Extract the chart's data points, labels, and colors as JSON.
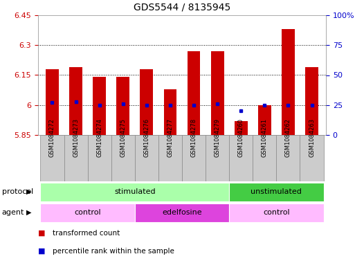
{
  "title": "GDS5544 / 8135945",
  "samples": [
    "GSM1084272",
    "GSM1084273",
    "GSM1084274",
    "GSM1084275",
    "GSM1084276",
    "GSM1084277",
    "GSM1084278",
    "GSM1084279",
    "GSM1084260",
    "GSM1084261",
    "GSM1084262",
    "GSM1084263"
  ],
  "bar_values": [
    6.18,
    6.19,
    6.14,
    6.14,
    6.18,
    6.08,
    6.27,
    6.27,
    5.92,
    6.0,
    6.38,
    6.19
  ],
  "bar_base": 5.85,
  "percentile_values": [
    27,
    28,
    25,
    26,
    25,
    25,
    25,
    26,
    20,
    25,
    25,
    25
  ],
  "ylim_left": [
    5.85,
    6.45
  ],
  "ylim_right": [
    0,
    100
  ],
  "yticks_left": [
    5.85,
    6.0,
    6.15,
    6.3,
    6.45
  ],
  "yticks_right": [
    0,
    25,
    50,
    75,
    100
  ],
  "ytick_labels_left": [
    "5.85",
    "6",
    "6.15",
    "6.3",
    "6.45"
  ],
  "ytick_labels_right": [
    "0",
    "25",
    "50",
    "75",
    "100%"
  ],
  "grid_values": [
    6.0,
    6.15,
    6.3
  ],
  "bar_color": "#cc0000",
  "percentile_color": "#0000cc",
  "protocol_labels": [
    {
      "label": "stimulated",
      "start": 0,
      "end": 8,
      "color": "#aaffaa"
    },
    {
      "label": "unstimulated",
      "start": 8,
      "end": 12,
      "color": "#44cc44"
    }
  ],
  "agent_labels": [
    {
      "label": "control",
      "start": 0,
      "end": 4,
      "color": "#ffbbff"
    },
    {
      "label": "edelfosine",
      "start": 4,
      "end": 8,
      "color": "#dd44dd"
    },
    {
      "label": "control",
      "start": 8,
      "end": 12,
      "color": "#ffbbff"
    }
  ],
  "legend_items": [
    "transformed count",
    "percentile rank within the sample"
  ],
  "background_color": "#ffffff",
  "tick_color_left": "#cc0000",
  "tick_color_right": "#0000cc",
  "sample_bg_color": "#cccccc",
  "sample_border_color": "#888888"
}
